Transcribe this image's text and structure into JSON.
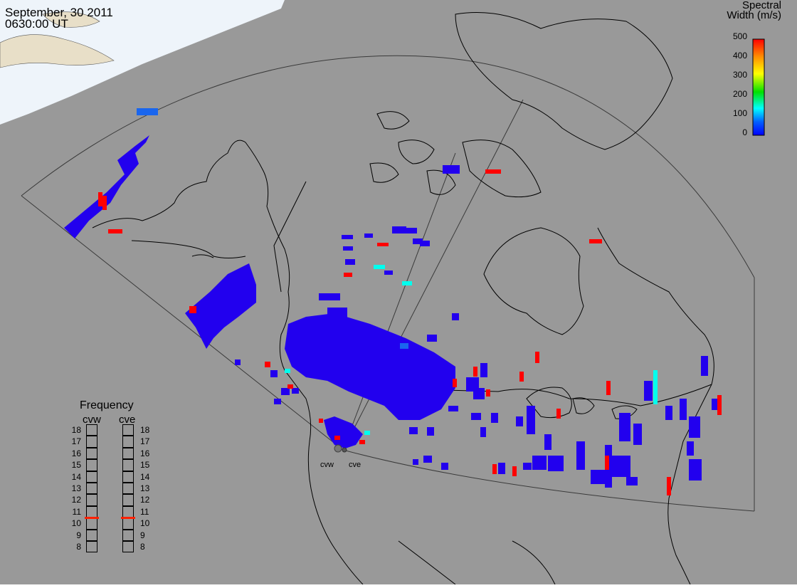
{
  "header": {
    "date": "September, 30 2011",
    "time": "0630:00 UT"
  },
  "colorbar": {
    "title_line1": "Spectral",
    "title_line2": "Width (m/s)",
    "ticks": [
      "500",
      "400",
      "300",
      "200",
      "100",
      "0"
    ],
    "scale_min": 0,
    "scale_max": 500,
    "colors": [
      "#ff0000",
      "#ff8c00",
      "#ffff00",
      "#00e000",
      "#00ffff",
      "#0050ff",
      "#0000ff"
    ]
  },
  "radars": {
    "west": "cvw",
    "east": "cve"
  },
  "frequency_panel": {
    "title": "Frequency",
    "col_west": "cvw",
    "col_east": "cve",
    "scale": [
      "18",
      "17",
      "16",
      "15",
      "14",
      "13",
      "12",
      "11",
      "10",
      "9",
      "8"
    ],
    "west_value_mhz": 10.5,
    "east_value_mhz": 10.5,
    "marker_color": "#ff2000"
  },
  "colors": {
    "background": "#999999",
    "daylight": "#eef4fa",
    "coastline": "#000000",
    "fov_outline": "#333333",
    "echo_low": "#2200ee",
    "echo_high": "#ff0000",
    "echo_mid": "#00ffee"
  }
}
